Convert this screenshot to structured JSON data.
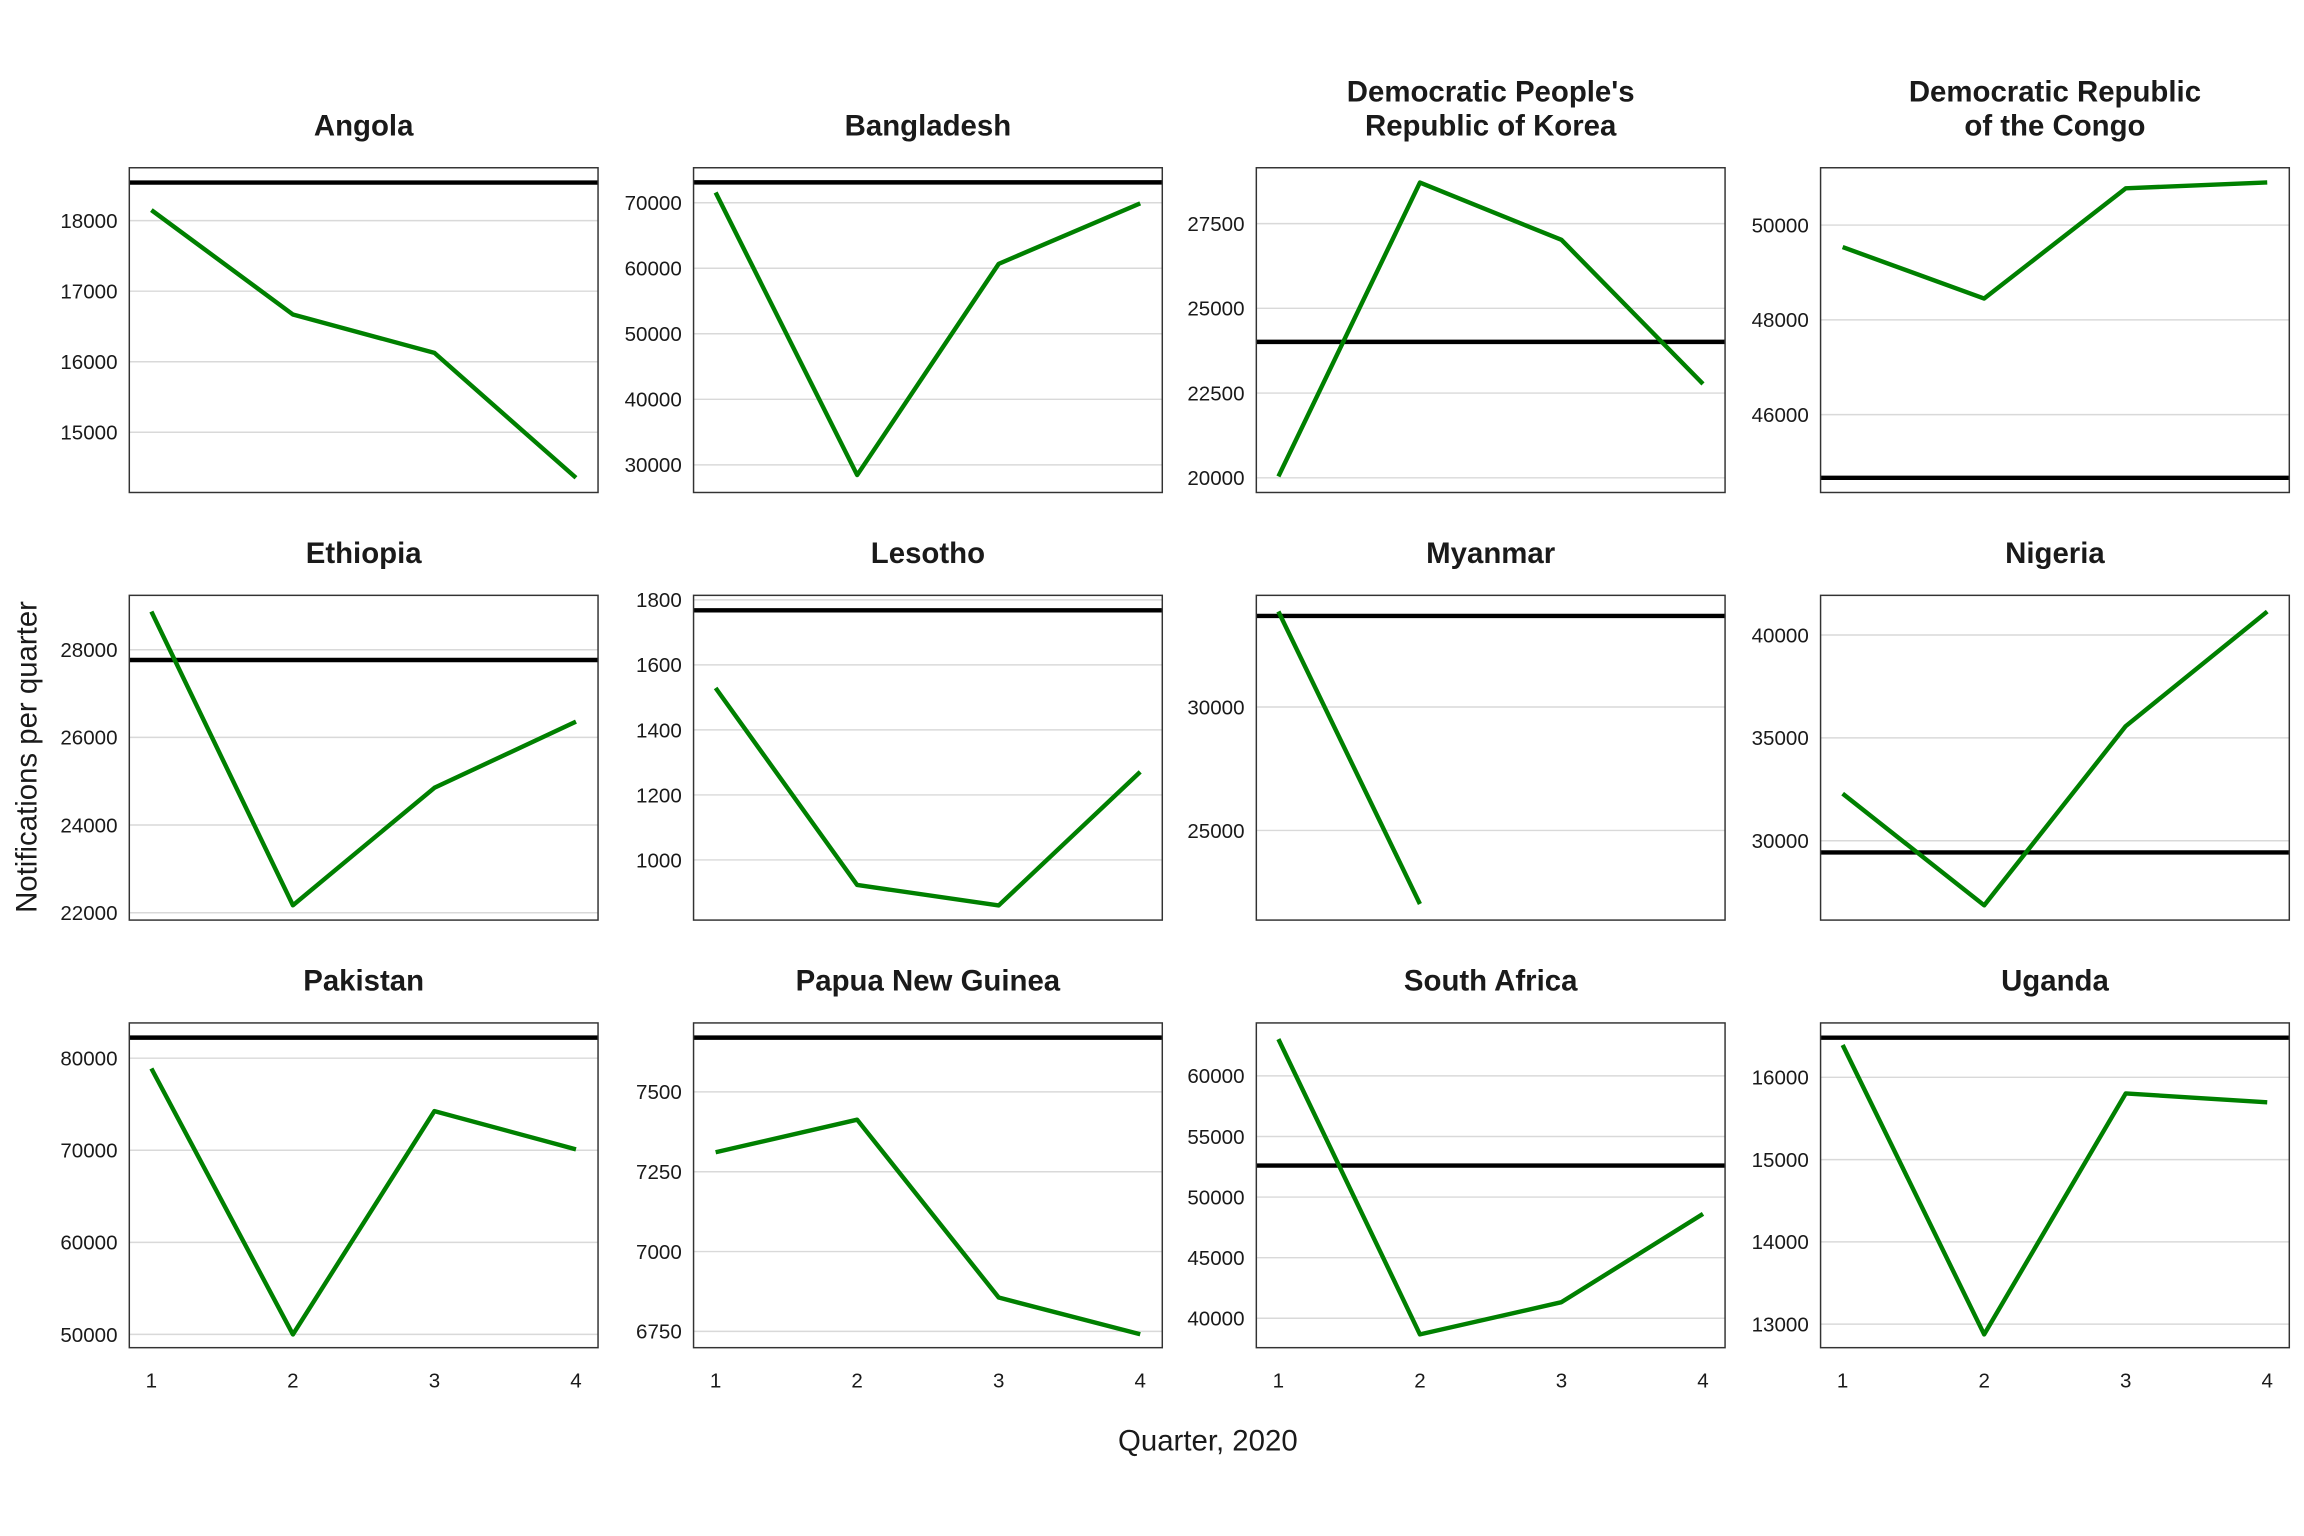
{
  "chart_data": {
    "type": "line",
    "layout": "facet-grid 3x4, free y scales",
    "xlabel": "Quarter, 2020",
    "ylabel": "Notifications per quarter",
    "x_ticks": [
      1,
      2,
      3,
      4
    ],
    "xlim": [
      0.844,
      4.156
    ],
    "grid": true,
    "colors": {
      "series": "#008000",
      "reference": "#000000",
      "grid": "#d9d9d9",
      "border": "#333333"
    },
    "panels": [
      {
        "title_lines": [
          "Angola"
        ],
        "values": [
          18150,
          16670,
          16125,
          14355
        ],
        "reference": 18540,
        "ylim": [
          14146,
          18750
        ],
        "y_ticks": [
          15000,
          16000,
          17000,
          18000
        ]
      },
      {
        "title_lines": [
          "Bangladesh"
        ],
        "values": [
          71550,
          28440,
          60670,
          69900
        ],
        "reference": 73100,
        "ylim": [
          25780,
          75333
        ],
        "y_ticks": [
          30000,
          40000,
          50000,
          60000,
          70000
        ]
      },
      {
        "title_lines": [
          "Democratic People's",
          "Republic of Korea"
        ],
        "values": [
          20040,
          28710,
          27020,
          22770
        ],
        "reference": 24010,
        "ylim": [
          19567,
          29147
        ],
        "y_ticks": [
          20000,
          22500,
          25000,
          27500
        ]
      },
      {
        "title_lines": [
          "Democratic Republic",
          "of the Congo"
        ],
        "values": [
          49535,
          48450,
          50775,
          50900
        ],
        "reference": 44667,
        "ylim": [
          44357,
          51209
        ],
        "y_ticks": [
          46000,
          48000,
          50000
        ]
      },
      {
        "title_lines": [
          "Ethiopia"
        ],
        "values": [
          28870,
          22170,
          24850,
          26360
        ],
        "reference": 27765,
        "ylim": [
          21832,
          29240
        ],
        "y_ticks": [
          22000,
          24000,
          26000,
          28000
        ]
      },
      {
        "title_lines": [
          "Lesotho"
        ],
        "values": [
          1529,
          923,
          860,
          1271
        ],
        "reference": 1768,
        "ylim": [
          815,
          1814
        ],
        "y_ticks": [
          1000,
          1200,
          1400,
          1600,
          1800
        ]
      },
      {
        "title_lines": [
          "Myanmar"
        ],
        "values": [
          33870,
          22020,
          null,
          null
        ],
        "reference": 33690,
        "ylim": [
          21369,
          34524
        ],
        "y_ticks": [
          25000,
          30000
        ]
      },
      {
        "title_lines": [
          "Nigeria"
        ],
        "values": [
          32290,
          26860,
          35570,
          41140
        ],
        "reference": 29430,
        "ylim": [
          26143,
          41929
        ],
        "y_ticks": [
          30000,
          35000,
          40000
        ]
      },
      {
        "title_lines": [
          "Pakistan"
        ],
        "values": [
          78880,
          50000,
          74255,
          70100
        ],
        "reference": 82234,
        "ylim": [
          48560,
          83830
        ],
        "y_ticks": [
          50000,
          60000,
          70000,
          80000
        ]
      },
      {
        "title_lines": [
          "Papua New Guinea"
        ],
        "values": [
          7311,
          7413,
          6856,
          6741
        ],
        "reference": 7670,
        "ylim": [
          6699,
          7716
        ],
        "y_ticks": [
          6750,
          7000,
          7250,
          7500
        ]
      },
      {
        "title_lines": [
          "South Africa"
        ],
        "values": [
          63030,
          38670,
          41330,
          48610
        ],
        "reference": 52600,
        "ylim": [
          37576,
          64364
        ],
        "y_ticks": [
          40000,
          45000,
          50000,
          55000,
          60000
        ]
      },
      {
        "title_lines": [
          "Uganda"
        ],
        "values": [
          16393,
          12875,
          15804,
          15696
        ],
        "reference": 16482,
        "ylim": [
          12714,
          16661
        ],
        "y_ticks": [
          13000,
          14000,
          15000,
          16000
        ]
      }
    ]
  }
}
